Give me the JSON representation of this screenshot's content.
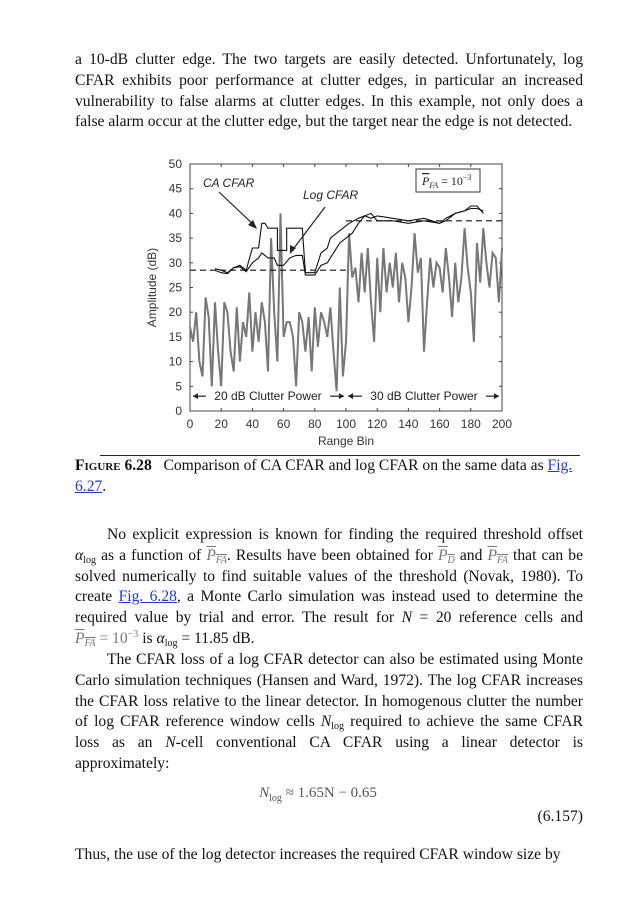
{
  "para1": [
    [
      "a 10-dB clutter edge. The two targets are easily detected. Unfortunately, log"
    ],
    [
      "CFAR exhibits poor performance at clutter edges, in particular an increased"
    ],
    [
      "vulnerability to false alarms at clutter edges. In this example, not only does a"
    ],
    [
      "false alarm occur at the clutter edge, but the target near the edge is not detected."
    ]
  ],
  "caption": {
    "label": "Figure 6.28",
    "text": "Comparison of CA CFAR and log CFAR on the same data as",
    "link_part1": "Fig.",
    "link_part2": "6.27",
    "end": "."
  },
  "para2": [
    [
      "No explicit expression is known for finding the required threshold offset"
    ],
    [
      {
        "i": "α"
      },
      {
        "sub": "log"
      },
      " as a function of ",
      {
        "pb": "P",
        "s": "FA"
      },
      ". Results have been obtained for ",
      {
        "pb": "P",
        "s": "D"
      },
      " and ",
      {
        "pb": "P",
        "s": "FA"
      },
      " that can be"
    ],
    [
      "solved numerically to find suitable values of the threshold (Novak, 1980). To"
    ],
    [
      "create ",
      {
        "link": "Fig. 6.28"
      },
      ", a Monte Carlo simulation was instead used to determine the"
    ],
    [
      "required value by trial and error. The result for ",
      {
        "i": "N"
      },
      " = 20 reference cells and"
    ],
    [
      {
        "pb": "P",
        "s": "FA"
      },
      {
        "g": " = 10"
      },
      {
        "sup": "−3"
      },
      " is ",
      {
        "i": "α"
      },
      {
        "sub": "log"
      },
      " = 11.85 dB."
    ]
  ],
  "para3": [
    [
      "The CFAR loss of a log CFAR detector can also be estimated using Monte"
    ],
    [
      "Carlo simulation techniques (Hansen and Ward, 1972). The log CFAR increases"
    ],
    [
      "the CFAR loss relative to the linear detector. In homogenous clutter the number"
    ],
    [
      "of log CFAR reference window cells ",
      {
        "i": "N"
      },
      {
        "sub": "log"
      },
      " required to achieve the same CFAR"
    ],
    [
      "loss as an ",
      {
        "i": "N"
      },
      "-cell conventional CA CFAR using a linear detector is"
    ],
    [
      "approximately:"
    ]
  ],
  "equation": {
    "lhs": "N",
    "lhs_sub": "log",
    "rhs": " ≈ 1.65N − 0.65",
    "number": "(6.157)"
  },
  "para4": [
    [
      "Thus, the use of the log detector increases the required CFAR window size by"
    ]
  ],
  "chart_data": {
    "type": "line",
    "title": "",
    "xlabel": "Range Bin",
    "ylabel": "Amplitude (dB)",
    "xlim": [
      0,
      200
    ],
    "ylim": [
      0,
      50
    ],
    "xticks": [
      0,
      20,
      40,
      60,
      80,
      100,
      120,
      140,
      160,
      180,
      200
    ],
    "yticks": [
      0,
      5,
      10,
      15,
      20,
      25,
      30,
      35,
      40,
      45,
      50
    ],
    "legend_box": {
      "text": "P",
      "sub": "FA",
      "eq": " = 10",
      "sup": "−3"
    },
    "annotations": {
      "ca_cfar": "CA CFAR",
      "log_cfar": "Log CFAR",
      "region1": "20 dB Clutter Power",
      "region2": "30 dB Clutter Power"
    },
    "colors": {
      "signal": "#777777",
      "cfar": "#111111"
    },
    "series": [
      {
        "name": "Signal",
        "x": [
          0,
          2,
          4,
          6,
          8,
          10,
          12,
          14,
          16,
          18,
          20,
          22,
          24,
          26,
          28,
          30,
          32,
          34,
          36,
          38,
          40,
          42,
          44,
          46,
          48,
          50,
          52,
          54,
          56,
          58,
          60,
          62,
          64,
          66,
          68,
          70,
          72,
          74,
          76,
          78,
          80,
          82,
          84,
          86,
          88,
          90,
          92,
          94,
          96,
          98,
          100,
          102,
          104,
          106,
          108,
          110,
          112,
          114,
          116,
          118,
          120,
          122,
          124,
          126,
          128,
          130,
          132,
          134,
          136,
          138,
          140,
          142,
          144,
          146,
          148,
          150,
          152,
          154,
          156,
          158,
          160,
          162,
          164,
          166,
          168,
          170,
          172,
          174,
          176,
          178,
          180,
          182,
          184,
          186,
          188,
          190,
          192,
          194,
          196,
          198,
          200
        ],
        "y": [
          17,
          14,
          20,
          10,
          7,
          23,
          19,
          5,
          22,
          12,
          5,
          22,
          20,
          12,
          8,
          21,
          10,
          18,
          15,
          24,
          12,
          20,
          14,
          22,
          18,
          8,
          35,
          20,
          10,
          40,
          15,
          18,
          18,
          15,
          5,
          20,
          18,
          12,
          19,
          8,
          21,
          13,
          20,
          18,
          15,
          21,
          12,
          4,
          25,
          7,
          14,
          36,
          27,
          29,
          22,
          32,
          24,
          33,
          22,
          14,
          31,
          20,
          33,
          24,
          30,
          25,
          32,
          22,
          30,
          27,
          18,
          25,
          36,
          28,
          31,
          12,
          22,
          31,
          25,
          30,
          29,
          24,
          33,
          27,
          19,
          30,
          22,
          27,
          37,
          29,
          24,
          14,
          34,
          26,
          37,
          30,
          25,
          32,
          31,
          22,
          33
        ]
      },
      {
        "name": "CA CFAR",
        "x": [
          16,
          20,
          24,
          28,
          32,
          36,
          40,
          44,
          46,
          48,
          50,
          56,
          56,
          62,
          62,
          72,
          74,
          80,
          84,
          88,
          90,
          94,
          98,
          102,
          108,
          112,
          116,
          120,
          130,
          140,
          150,
          160,
          164,
          170,
          176,
          180,
          184,
          188
        ],
        "y": [
          28.8,
          28.5,
          28,
          29,
          29.5,
          28.5,
          33,
          33,
          38,
          38,
          37,
          37,
          32.5,
          32.5,
          37,
          37,
          28,
          28,
          32,
          33,
          35,
          36,
          37,
          38,
          39,
          39.5,
          39,
          39.5,
          39,
          38.5,
          39,
          38,
          39,
          40,
          40.5,
          41,
          41,
          40.5
        ]
      },
      {
        "name": "Log CFAR",
        "x": [
          16,
          20,
          24,
          28,
          32,
          36,
          40,
          44,
          46,
          50,
          54,
          56,
          60,
          64,
          68,
          72,
          74,
          80,
          84,
          88,
          92,
          96,
          100,
          104,
          108,
          112,
          116,
          120,
          130,
          140,
          150,
          160,
          164,
          170,
          176,
          180,
          184,
          188
        ],
        "y": [
          28.5,
          28,
          27.8,
          29,
          29.2,
          28.2,
          30,
          31,
          32,
          31,
          31,
          29.5,
          29.5,
          31,
          31.5,
          31.5,
          27.5,
          27.5,
          29.5,
          30,
          32,
          34,
          35,
          36,
          38,
          39.5,
          40,
          38.5,
          38.5,
          38,
          38.5,
          38,
          38.5,
          40,
          40.5,
          41.5,
          41.5,
          40
        ]
      },
      {
        "name": "Threshold 20 dB",
        "x": [
          0,
          100
        ],
        "y": [
          28.5,
          28.5
        ],
        "style": "dashed"
      },
      {
        "name": "Threshold 30 dB",
        "x": [
          100,
          200
        ],
        "y": [
          38.5,
          38.5
        ],
        "style": "dashed"
      }
    ]
  }
}
